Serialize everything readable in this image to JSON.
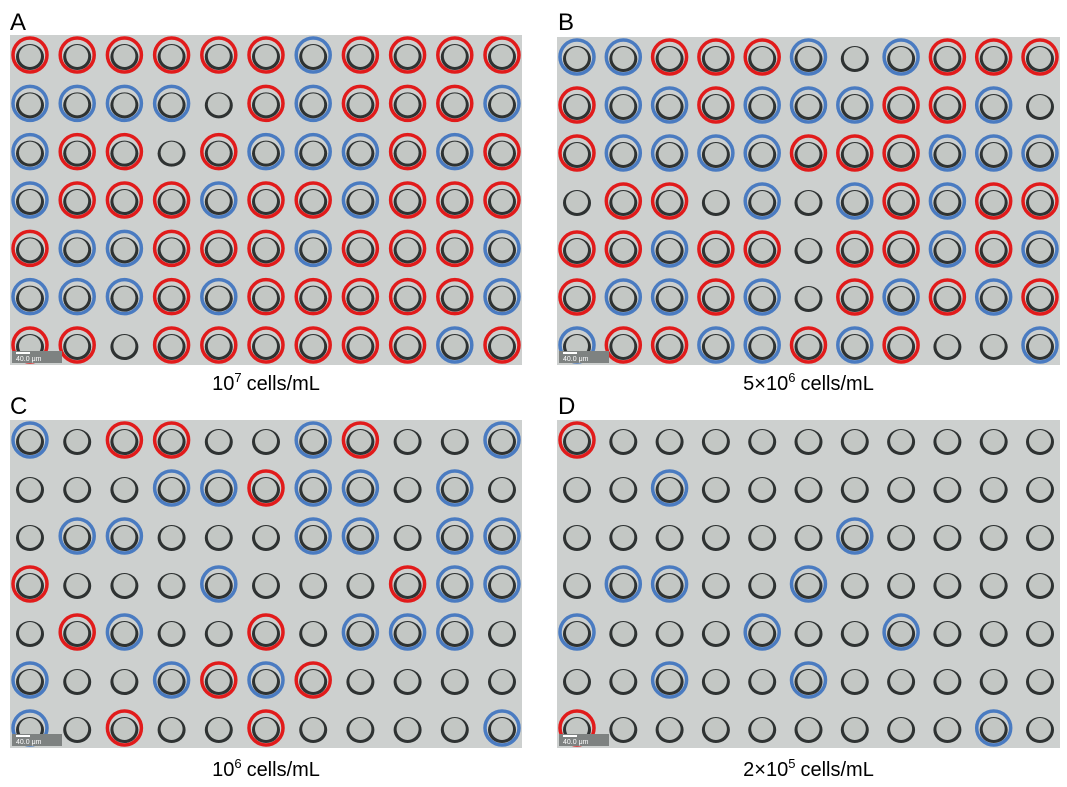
{
  "panels": [
    {
      "label": "A",
      "caption": {
        "base": "10",
        "exponent": "7",
        "unit": "cells/mL"
      },
      "scale_bar": "40.0 μm"
    },
    {
      "label": "B",
      "caption": {
        "base": "5×10",
        "exponent": "6",
        "unit": "cells/mL"
      },
      "scale_bar": "40.0 μm"
    },
    {
      "label": "C",
      "caption": {
        "base": "10",
        "exponent": "6",
        "unit": "cells/mL"
      },
      "scale_bar": "40.0 μm"
    },
    {
      "label": "D",
      "caption": {
        "base": "2×10",
        "exponent": "5",
        "unit": "cells/mL"
      },
      "scale_bar": "40.0 μm"
    }
  ]
}
